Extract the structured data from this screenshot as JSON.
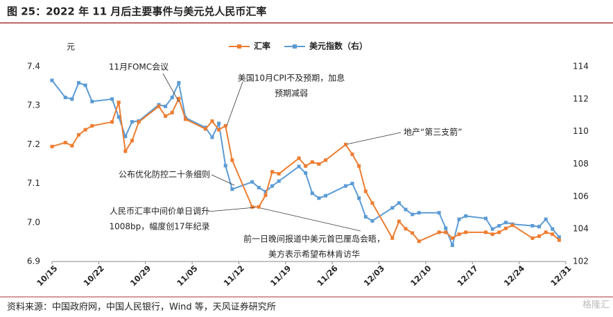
{
  "chart_data": {
    "type": "line",
    "title": "图 25：2022 年 11 月后主要事件与美元兑人民币汇率",
    "y_unit": "元",
    "source": "资料来源：中国政府网，中国人民银行，Wind 等，天风证券研究所",
    "watermark": "格隆汇",
    "xlim": [
      "10/15",
      "12/31"
    ],
    "xticks": [
      "10/15",
      "10/22",
      "10/29",
      "11/05",
      "11/12",
      "11/19",
      "11/26",
      "12/03",
      "12/10",
      "12/17",
      "12/24",
      "12/31"
    ],
    "x": [
      "10/15",
      "10/17",
      "10/18",
      "10/19",
      "10/20",
      "10/21",
      "10/24",
      "10/25",
      "10/26",
      "10/27",
      "10/28",
      "10/31",
      "11/1",
      "11/2",
      "11/3",
      "11/4",
      "11/7",
      "11/8",
      "11/9",
      "11/10",
      "11/11",
      "11/14",
      "11/15",
      "11/16",
      "11/17",
      "11/18",
      "11/21",
      "11/22",
      "11/23",
      "11/24",
      "11/25",
      "11/28",
      "11/29",
      "11/30",
      "12/1",
      "12/2",
      "12/5",
      "12/6",
      "12/7",
      "12/8",
      "12/9",
      "12/12",
      "12/13",
      "12/14",
      "12/15",
      "12/16",
      "12/19",
      "12/20",
      "12/21",
      "12/22",
      "12/23",
      "12/26",
      "12/27",
      "12/28",
      "12/29",
      "12/30"
    ],
    "series": [
      {
        "name": "汇率",
        "color": "#ed7d31",
        "axis": "y",
        "values": [
          7.195,
          7.205,
          7.197,
          7.225,
          7.238,
          7.248,
          7.258,
          7.308,
          7.183,
          7.21,
          7.258,
          7.298,
          7.273,
          7.282,
          7.318,
          7.265,
          7.24,
          7.26,
          7.238,
          7.248,
          7.16,
          7.04,
          7.04,
          7.07,
          7.13,
          7.125,
          7.165,
          7.145,
          7.155,
          7.15,
          7.16,
          7.2,
          7.175,
          7.145,
          7.08,
          7.05,
          6.96,
          7.003,
          6.984,
          6.973,
          6.952,
          6.975,
          6.975,
          6.96,
          6.97,
          6.975,
          6.975,
          6.97,
          6.975,
          6.985,
          6.993,
          6.96,
          6.965,
          6.975,
          6.97,
          6.955
        ]
      },
      {
        "name": "美元指数（右）",
        "color": "#5b9bd5",
        "axis": "y2",
        "values": [
          113.15,
          112.1,
          112.0,
          113.0,
          112.85,
          111.85,
          112.0,
          110.9,
          109.7,
          110.6,
          110.65,
          111.65,
          111.55,
          112.1,
          113.0,
          110.85,
          110.25,
          109.65,
          110.5,
          107.9,
          106.45,
          106.9,
          106.55,
          106.3,
          106.65,
          106.95,
          107.85,
          107.45,
          106.2,
          105.9,
          106.05,
          106.65,
          106.8,
          105.9,
          104.75,
          104.5,
          105.3,
          105.6,
          105.2,
          104.9,
          105.0,
          105.0,
          104.05,
          103.0,
          104.6,
          104.8,
          104.65,
          104.0,
          104.2,
          104.4,
          104.3,
          104.2,
          104.15,
          104.6,
          104.0,
          103.5
        ]
      }
    ],
    "ylim": [
      6.9,
      7.4
    ],
    "yticks": [
      6.9,
      {
        "value": 7,
        "label": "7.0"
      },
      7.1,
      7.2,
      7.3,
      7.4
    ],
    "y2lim": [
      102,
      114
    ],
    "y2ticks": [
      102,
      104,
      106,
      108,
      110,
      112,
      114
    ],
    "legend": "top",
    "annotations": [
      {
        "text": [
          "11月FOMC会议"
        ]
      },
      {
        "text": [
          "美国10月CPI不及预期，加息",
          "预期减弱"
        ]
      },
      {
        "text": [
          "地产“第三支箭”"
        ]
      },
      {
        "text": [
          "公布优化防控二十条细则"
        ]
      },
      {
        "text": [
          "人民币汇率中间价单日调升",
          "1008bp，幅度创17年纪录"
        ]
      },
      {
        "text": [
          "前一日晚间报道中美元首巴厘岛会晤，",
          "美方表示希望布林肯访华"
        ]
      }
    ]
  }
}
